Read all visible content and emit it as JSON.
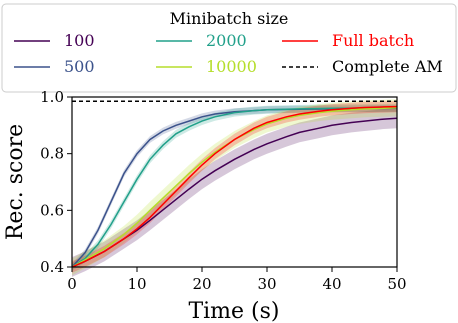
{
  "chart_data": {
    "type": "line",
    "xlabel": "Time (s)",
    "ylabel": "Rec. score",
    "xlim": [
      0,
      50
    ],
    "ylim": [
      0.4,
      1.0
    ],
    "x_ticks": [
      0,
      10,
      20,
      30,
      40,
      50
    ],
    "y_ticks": [
      0.4,
      0.6,
      0.8,
      1.0
    ],
    "x_tick_labels": [
      "0",
      "10",
      "20",
      "30",
      "40",
      "50"
    ],
    "y_tick_labels": [
      "0.4",
      "0.6",
      "0.8",
      "1.0"
    ],
    "grid": false,
    "legend": {
      "title": "Minibatch size",
      "placement": "top",
      "columns": 3
    },
    "series": [
      {
        "name": "100",
        "color": "#440154",
        "style": "solid",
        "band": 0.035,
        "x": [
          0,
          2,
          5,
          8,
          10,
          12,
          15,
          18,
          20,
          22,
          25,
          28,
          30,
          33,
          35,
          38,
          40,
          43,
          45,
          48,
          50
        ],
        "y": [
          0.4,
          0.42,
          0.455,
          0.5,
          0.53,
          0.565,
          0.62,
          0.675,
          0.71,
          0.74,
          0.78,
          0.815,
          0.835,
          0.86,
          0.875,
          0.89,
          0.9,
          0.91,
          0.915,
          0.922,
          0.925
        ]
      },
      {
        "name": "500",
        "color": "#3b528b",
        "style": "solid",
        "band": 0.012,
        "x": [
          0,
          2,
          4,
          6,
          8,
          10,
          12,
          14,
          16,
          18,
          20,
          22,
          25,
          28,
          30,
          35,
          40,
          45,
          50
        ],
        "y": [
          0.4,
          0.45,
          0.53,
          0.63,
          0.73,
          0.8,
          0.85,
          0.88,
          0.9,
          0.915,
          0.93,
          0.94,
          0.948,
          0.952,
          0.955,
          0.957,
          0.958,
          0.959,
          0.96
        ]
      },
      {
        "name": "2000",
        "color": "#21a08a",
        "style": "solid",
        "band": 0.014,
        "x": [
          0,
          2,
          4,
          6,
          8,
          10,
          12,
          14,
          16,
          18,
          20,
          22,
          25,
          28,
          30,
          35,
          40,
          45,
          50
        ],
        "y": [
          0.4,
          0.43,
          0.48,
          0.55,
          0.63,
          0.71,
          0.78,
          0.83,
          0.87,
          0.895,
          0.915,
          0.93,
          0.945,
          0.952,
          0.955,
          0.958,
          0.96,
          0.961,
          0.962
        ]
      },
      {
        "name": "10000",
        "color": "#b5de2b",
        "style": "solid",
        "band": 0.03,
        "x": [
          0,
          2,
          5,
          8,
          10,
          12,
          15,
          18,
          20,
          22,
          25,
          28,
          30,
          33,
          35,
          38,
          40,
          43,
          45,
          48,
          50
        ],
        "y": [
          0.4,
          0.425,
          0.465,
          0.515,
          0.555,
          0.6,
          0.665,
          0.73,
          0.77,
          0.805,
          0.85,
          0.885,
          0.905,
          0.925,
          0.935,
          0.945,
          0.95,
          0.955,
          0.958,
          0.96,
          0.962
        ]
      },
      {
        "name": "Full batch",
        "color": "#ff0000",
        "style": "solid",
        "band": 0.02,
        "x": [
          0,
          2,
          5,
          8,
          10,
          12,
          15,
          18,
          20,
          22,
          25,
          28,
          30,
          33,
          35,
          38,
          40,
          43,
          45,
          48,
          50
        ],
        "y": [
          0.4,
          0.42,
          0.455,
          0.5,
          0.535,
          0.575,
          0.645,
          0.715,
          0.76,
          0.8,
          0.85,
          0.89,
          0.91,
          0.93,
          0.94,
          0.95,
          0.955,
          0.96,
          0.963,
          0.965,
          0.966
        ]
      },
      {
        "name": "Complete AM",
        "color": "#000000",
        "style": "dashed",
        "band": 0,
        "x": [
          0,
          50
        ],
        "y": [
          0.985,
          0.985
        ]
      }
    ]
  }
}
